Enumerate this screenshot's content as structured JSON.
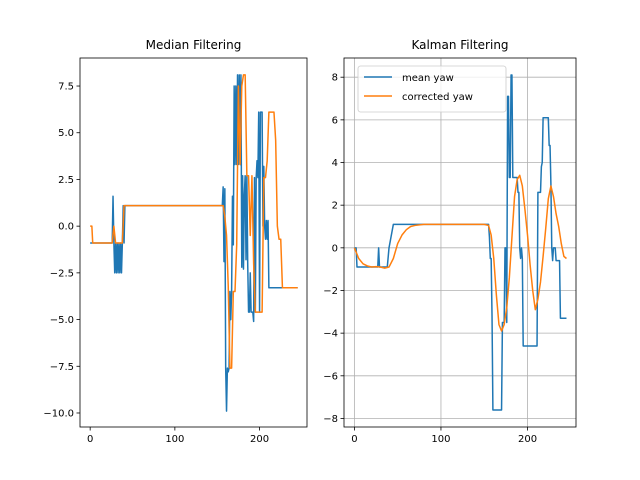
{
  "chart_data": [
    {
      "type": "line",
      "title": "Median Filtering",
      "xlabel": "",
      "ylabel": "",
      "xlim": [
        -12,
        256
      ],
      "ylim": [
        -10.75,
        9.0
      ],
      "xticks": [
        0,
        100,
        200
      ],
      "yticks": [
        -10.0,
        -7.5,
        -5.0,
        -2.5,
        0.0,
        2.5,
        5.0,
        7.5
      ],
      "ytick_labels": [
        "−10.0",
        "−7.5",
        "−5.0",
        "−2.5",
        "0.0",
        "2.5",
        "5.0",
        "7.5"
      ],
      "grid": false,
      "legend": null,
      "series": [
        {
          "color": "#1f77b4",
          "x": [
            0,
            26,
            27,
            28,
            29,
            30,
            31,
            32,
            33,
            34,
            35,
            36,
            37,
            38,
            39,
            40,
            41,
            42,
            43,
            44,
            45,
            155,
            156,
            157,
            158,
            159,
            160,
            161,
            162,
            163,
            164,
            165,
            166,
            167,
            168,
            169,
            170,
            171,
            172,
            173,
            174,
            175,
            176,
            177,
            178,
            179,
            180,
            181,
            182,
            183,
            184,
            185,
            186,
            187,
            188,
            189,
            190,
            191,
            192,
            193,
            194,
            195,
            196,
            197,
            198,
            199,
            200,
            201,
            202,
            203,
            204,
            205,
            206,
            207,
            208,
            209,
            210,
            211,
            212,
            213,
            214,
            215,
            216,
            217,
            218,
            219,
            220,
            221,
            222,
            223,
            224,
            225,
            226,
            227,
            228,
            229,
            230,
            231,
            232,
            233,
            234,
            235,
            236,
            237,
            238,
            239,
            240,
            241,
            242,
            243,
            244,
            245
          ],
          "y": [
            -0.9,
            -0.9,
            1.6,
            -0.9,
            -2.5,
            -0.9,
            -2.5,
            -0.9,
            -2.5,
            -0.9,
            -2.5,
            -0.9,
            -2.5,
            -0.9,
            1.1,
            -0.9,
            1.1,
            1.1,
            1.1,
            1.1,
            1.1,
            1.1,
            1.1,
            2.1,
            -1.9,
            2.0,
            -7.6,
            -9.9,
            -7.6,
            -7.8,
            -7.6,
            -3.5,
            -5.0,
            -3.5,
            1.6,
            -1.0,
            7.5,
            3.3,
            7.5,
            3.3,
            8.1,
            3.3,
            8.1,
            3.3,
            8.1,
            -2.2,
            2.7,
            -2.3,
            1.7,
            2.7,
            -1.8,
            2.7,
            -2.0,
            -4.6,
            -4.6,
            -2.5,
            -4.6,
            -4.6,
            -4.6,
            -5.1,
            2.6,
            -4.6,
            2.6,
            3.5,
            2.6,
            6.1,
            -4.6,
            6.1,
            6.1,
            6.1,
            0.0,
            3.2,
            0.0,
            -0.7,
            0.3,
            -0.7,
            0.3,
            -3.3,
            -3.3,
            -3.3,
            -3.3,
            -3.3,
            -3.3,
            -3.3,
            -3.3,
            -3.3,
            -3.3,
            -3.3,
            -3.3,
            -3.3,
            -3.3,
            -3.3,
            -3.3,
            -3.3,
            -3.3,
            -3.3,
            -3.3,
            -3.3,
            -3.3,
            -3.3,
            -3.3,
            -3.3,
            -3.3,
            -3.3,
            -3.3,
            -3.3,
            -3.3,
            -3.3,
            -3.3,
            -3.3,
            -3.3,
            -3.3
          ]
        },
        {
          "color": "#ff7f0e",
          "x": [
            0,
            2,
            3,
            26,
            28,
            30,
            31,
            38,
            40,
            42,
            44,
            157,
            159,
            161,
            163,
            165,
            167,
            169,
            171,
            173,
            175,
            177,
            179,
            181,
            183,
            185,
            187,
            189,
            191,
            193,
            195,
            197,
            199,
            201,
            203,
            205,
            207,
            209,
            211,
            213,
            215,
            217,
            219,
            221,
            223,
            225,
            227,
            229,
            231,
            233,
            235,
            237,
            239,
            241,
            243,
            245
          ],
          "y": [
            0.0,
            0.0,
            -0.9,
            -0.9,
            0.0,
            -0.9,
            -0.9,
            -0.9,
            1.1,
            1.1,
            1.1,
            1.1,
            0.5,
            -0.5,
            -3.2,
            -7.6,
            -7.6,
            -3.5,
            -3.5,
            -1.0,
            7.5,
            3.3,
            7.5,
            8.1,
            8.1,
            2.7,
            2.7,
            -0.5,
            2.7,
            -2.0,
            -4.6,
            -4.6,
            -4.6,
            -4.6,
            -4.6,
            2.6,
            2.6,
            3.5,
            6.1,
            6.1,
            6.1,
            6.1,
            4.6,
            0.0,
            -0.7,
            -0.7,
            -3.3,
            -3.3,
            -3.3,
            -3.3,
            -3.3,
            -3.3,
            -3.3,
            -3.3,
            -3.3,
            -3.3
          ]
        }
      ]
    },
    {
      "type": "line",
      "title": "Kalman Filtering",
      "xlabel": "",
      "ylabel": "",
      "xlim": [
        -12,
        256
      ],
      "ylim": [
        -8.4,
        8.9
      ],
      "xticks": [
        0,
        100,
        200
      ],
      "yticks": [
        -8,
        -6,
        -4,
        -2,
        0,
        2,
        4,
        6,
        8
      ],
      "ytick_labels": [
        "−8",
        "−6",
        "−4",
        "−2",
        "0",
        "2",
        "4",
        "6",
        "8"
      ],
      "grid": true,
      "legend": "top-left",
      "series": [
        {
          "name": "mean yaw",
          "color": "#1f77b4",
          "x": [
            0,
            2,
            3,
            26,
            27,
            28,
            29,
            30,
            38,
            40,
            45,
            46,
            154,
            155,
            156,
            157,
            158,
            159,
            160,
            161,
            162,
            163,
            164,
            165,
            166,
            167,
            168,
            169,
            170,
            171,
            172,
            173,
            174,
            175,
            176,
            177,
            178,
            179,
            180,
            181,
            182,
            183,
            184,
            185,
            186,
            187,
            188,
            189,
            190,
            191,
            192,
            193,
            194,
            195,
            196,
            197,
            198,
            199,
            200,
            201,
            202,
            203,
            204,
            205,
            206,
            207,
            208,
            209,
            210,
            211,
            212,
            213,
            214,
            215,
            216,
            217,
            218,
            219,
            220,
            221,
            222,
            223,
            224,
            225,
            226,
            227,
            228,
            229,
            230,
            231,
            232,
            233,
            234,
            235,
            236,
            237,
            238,
            239,
            240,
            241,
            242,
            243,
            244,
            245
          ],
          "y": [
            0.0,
            0.0,
            -0.9,
            -0.9,
            -0.9,
            0.0,
            -0.9,
            -0.9,
            -0.9,
            0.0,
            1.1,
            1.1,
            1.1,
            1.1,
            0.5,
            -0.5,
            -0.5,
            -3.2,
            -7.6,
            -7.6,
            -7.6,
            -7.6,
            -7.6,
            -7.6,
            -7.6,
            -7.6,
            -7.6,
            -7.6,
            -7.6,
            -3.5,
            -3.5,
            -3.5,
            0.0,
            0.0,
            -3.5,
            7.1,
            7.1,
            3.3,
            3.3,
            8.1,
            8.1,
            3.3,
            3.3,
            3.3,
            3.3,
            3.3,
            3.3,
            2.6,
            2.6,
            0.0,
            -0.5,
            0.0,
            -0.5,
            -4.6,
            -4.6,
            -4.6,
            -4.6,
            -4.6,
            -4.6,
            -4.6,
            -4.6,
            -4.6,
            -4.6,
            -4.6,
            -4.6,
            -4.6,
            -4.6,
            -4.6,
            -4.6,
            -4.6,
            2.6,
            2.6,
            2.6,
            2.6,
            3.8,
            4.0,
            6.1,
            6.1,
            6.1,
            6.1,
            6.1,
            6.1,
            6.1,
            4.8,
            4.8,
            3.0,
            0.0,
            -0.6,
            0.0,
            0.0,
            0.0,
            -0.6,
            -0.6,
            -0.6,
            -0.6,
            -0.6,
            -3.3,
            -3.3,
            -3.3,
            -3.3,
            -3.3,
            -3.3,
            -3.3,
            -3.3
          ]
        },
        {
          "name": "corrected yaw",
          "color": "#ff7f0e",
          "x": [
            0,
            5,
            10,
            15,
            20,
            25,
            30,
            35,
            40,
            45,
            50,
            55,
            60,
            65,
            70,
            80,
            90,
            100,
            110,
            120,
            130,
            140,
            150,
            155,
            158,
            161,
            164,
            167,
            170,
            173,
            176,
            179,
            182,
            185,
            188,
            191,
            194,
            197,
            200,
            203,
            206,
            209,
            212,
            215,
            218,
            221,
            224,
            227,
            230,
            233,
            236,
            239,
            242,
            245
          ],
          "y": [
            0.0,
            -0.5,
            -0.75,
            -0.85,
            -0.9,
            -0.88,
            -0.9,
            -0.95,
            -0.9,
            -0.5,
            0.2,
            0.6,
            0.85,
            1.0,
            1.05,
            1.1,
            1.1,
            1.1,
            1.1,
            1.1,
            1.1,
            1.1,
            1.1,
            1.05,
            0.6,
            -0.5,
            -2.2,
            -3.6,
            -3.9,
            -3.6,
            -2.8,
            -1.4,
            0.5,
            2.4,
            3.2,
            3.4,
            2.9,
            1.8,
            0.6,
            -0.8,
            -2.0,
            -2.9,
            -2.4,
            -1.6,
            -0.4,
            0.9,
            2.3,
            2.9,
            2.4,
            1.6,
            1.0,
            0.2,
            -0.4,
            -0.5
          ]
        }
      ]
    }
  ]
}
